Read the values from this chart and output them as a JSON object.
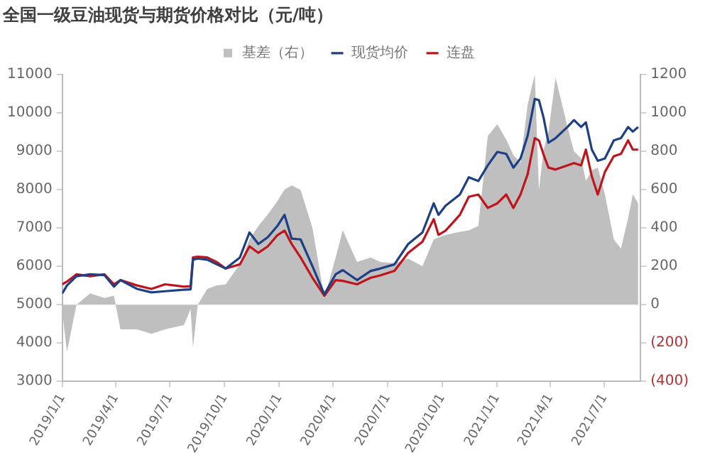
{
  "chart_data": {
    "type": "line",
    "title": "全国一级豆油现货与期货价格对比（元/吨）",
    "x": [
      "2019-01-01",
      "2019-01-09",
      "2019-01-25",
      "2019-02-17",
      "2019-03-13",
      "2019-03-29",
      "2019-04-09",
      "2019-05-07",
      "2019-05-31",
      "2019-06-23",
      "2019-07-25",
      "2019-08-05",
      "2019-08-09",
      "2019-08-17",
      "2019-09-02",
      "2019-09-18",
      "2019-10-03",
      "2019-10-27",
      "2019-11-12",
      "2019-11-27",
      "2019-12-13",
      "2019-12-29",
      "2020-01-10",
      "2020-01-22",
      "2020-02-06",
      "2020-02-26",
      "2020-03-17",
      "2020-04-05",
      "2020-04-17",
      "2020-05-11",
      "2020-06-03",
      "2020-06-19",
      "2020-07-13",
      "2020-08-05",
      "2020-08-29",
      "2020-09-17",
      "2020-09-25",
      "2020-10-07",
      "2020-10-31",
      "2020-11-15",
      "2020-12-01",
      "2020-12-17",
      "2021-01-02",
      "2021-01-17",
      "2021-01-29",
      "2021-02-10",
      "2021-02-22",
      "2021-03-06",
      "2021-03-13",
      "2021-03-21",
      "2021-03-29",
      "2021-04-10",
      "2021-04-30",
      "2021-05-11",
      "2021-05-23",
      "2021-05-31",
      "2021-06-10",
      "2021-06-20",
      "2021-07-02",
      "2021-07-17",
      "2021-07-29",
      "2021-08-10",
      "2021-08-18",
      "2021-08-27"
    ],
    "series": [
      {
        "name": "基差（右）",
        "type": "area",
        "axis": "y2",
        "color": "#bfbfbf",
        "values": [
          -35,
          -246,
          0,
          59,
          35,
          47,
          -129,
          -129,
          -152,
          -129,
          -106,
          -23,
          -223,
          0,
          82,
          100,
          106,
          211,
          340,
          410,
          470,
          540,
          600,
          621,
          598,
          400,
          35,
          246,
          387,
          223,
          246,
          223,
          215,
          240,
          200,
          340,
          350,
          363,
          380,
          387,
          410,
          879,
          940,
          860,
          780,
          739,
          1043,
          1200,
          598,
          809,
          900,
          1184,
          926,
          800,
          762,
          645,
          700,
          715,
          575,
          340,
          293,
          450,
          575,
          528
        ]
      },
      {
        "name": "现货均价",
        "type": "line",
        "color": "#1c3f86",
        "values": [
          5290,
          5500,
          5740,
          5790,
          5770,
          5470,
          5640,
          5410,
          5320,
          5350,
          5390,
          5400,
          6170,
          6200,
          6170,
          6050,
          5940,
          6230,
          6880,
          6580,
          6760,
          7050,
          7340,
          6720,
          6700,
          6000,
          5270,
          5790,
          5900,
          5640,
          5880,
          5940,
          6050,
          6580,
          6880,
          7640,
          7340,
          7580,
          7870,
          8320,
          8220,
          8630,
          8980,
          8930,
          8570,
          8810,
          9400,
          10360,
          10330,
          9860,
          9220,
          9340,
          9630,
          9810,
          9630,
          9750,
          9040,
          8750,
          8810,
          9280,
          9340,
          9630,
          9510,
          9630
        ]
      },
      {
        "name": "连盘",
        "type": "line",
        "color": "#c0141c",
        "values": [
          5530,
          5600,
          5790,
          5740,
          5790,
          5530,
          5640,
          5500,
          5410,
          5530,
          5470,
          5480,
          6230,
          6250,
          6230,
          6110,
          5940,
          6050,
          6520,
          6350,
          6520,
          6810,
          6930,
          6580,
          6230,
          5700,
          5230,
          5640,
          5620,
          5530,
          5700,
          5760,
          5880,
          6350,
          6640,
          7230,
          6820,
          6930,
          7340,
          7810,
          7870,
          7520,
          7640,
          7870,
          7520,
          7870,
          8400,
          9340,
          9280,
          8900,
          8570,
          8520,
          8630,
          8690,
          8630,
          9040,
          8340,
          7870,
          8460,
          8870,
          8930,
          9280,
          9040,
          9040
        ]
      }
    ],
    "xlim": [
      "2019-01-01",
      "2021-08-31"
    ],
    "xticks": [
      {
        "value": "2019-01-01",
        "label": "2019/1/1"
      },
      {
        "value": "2019-04-01",
        "label": "2019/4/1"
      },
      {
        "value": "2019-07-01",
        "label": "2019/7/1"
      },
      {
        "value": "2019-10-01",
        "label": "2019/10/1"
      },
      {
        "value": "2020-01-01",
        "label": "2020/1/1"
      },
      {
        "value": "2020-04-01",
        "label": "2020/4/1"
      },
      {
        "value": "2020-07-01",
        "label": "2020/7/1"
      },
      {
        "value": "2020-10-01",
        "label": "2020/10/1"
      },
      {
        "value": "2021-01-01",
        "label": "2021/1/1"
      },
      {
        "value": "2021-04-01",
        "label": "2021/4/1"
      },
      {
        "value": "2021-07-01",
        "label": "2021/7/1"
      }
    ],
    "ylim": [
      3000,
      11000
    ],
    "yticks": [
      3000,
      4000,
      5000,
      6000,
      7000,
      8000,
      9000,
      10000,
      11000
    ],
    "y2lim": [
      -400,
      1200
    ],
    "y2ticks": [
      {
        "value": -400,
        "label": "(400)"
      },
      {
        "value": -200,
        "label": "(200)"
      },
      0,
      200,
      400,
      600,
      800,
      1000,
      1200
    ],
    "grid": false,
    "legend": "top"
  }
}
